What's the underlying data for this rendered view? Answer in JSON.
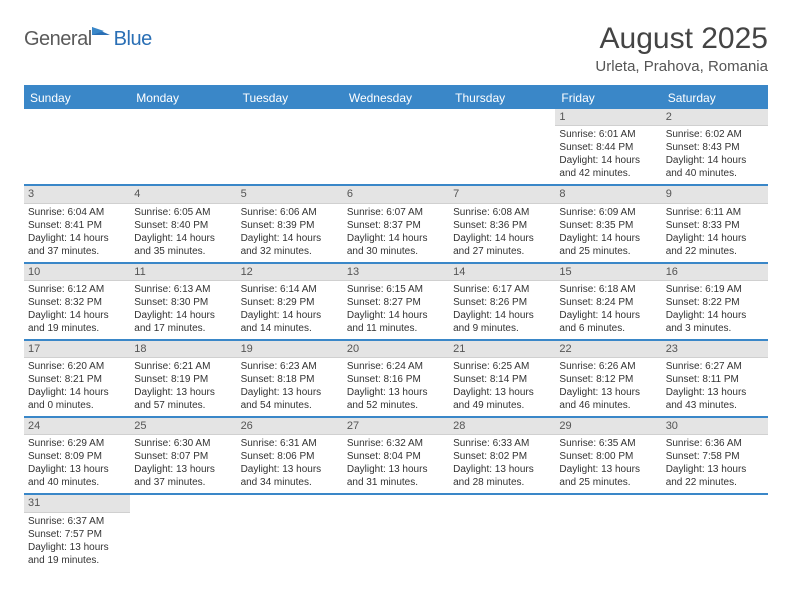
{
  "logo": {
    "part1": "General",
    "part2": "Blue"
  },
  "title": "August 2025",
  "location": "Urleta, Prahova, Romania",
  "colors": {
    "brand_blue": "#3a87c8",
    "brand_blue_dark": "#2a6fb5",
    "header_gray": "#e4e4e4",
    "text": "#333333",
    "white": "#ffffff"
  },
  "weekdays": [
    "Sunday",
    "Monday",
    "Tuesday",
    "Wednesday",
    "Thursday",
    "Friday",
    "Saturday"
  ],
  "weeks": [
    [
      null,
      null,
      null,
      null,
      null,
      {
        "n": "1",
        "sr": "6:01 AM",
        "ss": "8:44 PM",
        "dl": "14 hours and 42 minutes."
      },
      {
        "n": "2",
        "sr": "6:02 AM",
        "ss": "8:43 PM",
        "dl": "14 hours and 40 minutes."
      }
    ],
    [
      {
        "n": "3",
        "sr": "6:04 AM",
        "ss": "8:41 PM",
        "dl": "14 hours and 37 minutes."
      },
      {
        "n": "4",
        "sr": "6:05 AM",
        "ss": "8:40 PM",
        "dl": "14 hours and 35 minutes."
      },
      {
        "n": "5",
        "sr": "6:06 AM",
        "ss": "8:39 PM",
        "dl": "14 hours and 32 minutes."
      },
      {
        "n": "6",
        "sr": "6:07 AM",
        "ss": "8:37 PM",
        "dl": "14 hours and 30 minutes."
      },
      {
        "n": "7",
        "sr": "6:08 AM",
        "ss": "8:36 PM",
        "dl": "14 hours and 27 minutes."
      },
      {
        "n": "8",
        "sr": "6:09 AM",
        "ss": "8:35 PM",
        "dl": "14 hours and 25 minutes."
      },
      {
        "n": "9",
        "sr": "6:11 AM",
        "ss": "8:33 PM",
        "dl": "14 hours and 22 minutes."
      }
    ],
    [
      {
        "n": "10",
        "sr": "6:12 AM",
        "ss": "8:32 PM",
        "dl": "14 hours and 19 minutes."
      },
      {
        "n": "11",
        "sr": "6:13 AM",
        "ss": "8:30 PM",
        "dl": "14 hours and 17 minutes."
      },
      {
        "n": "12",
        "sr": "6:14 AM",
        "ss": "8:29 PM",
        "dl": "14 hours and 14 minutes."
      },
      {
        "n": "13",
        "sr": "6:15 AM",
        "ss": "8:27 PM",
        "dl": "14 hours and 11 minutes."
      },
      {
        "n": "14",
        "sr": "6:17 AM",
        "ss": "8:26 PM",
        "dl": "14 hours and 9 minutes."
      },
      {
        "n": "15",
        "sr": "6:18 AM",
        "ss": "8:24 PM",
        "dl": "14 hours and 6 minutes."
      },
      {
        "n": "16",
        "sr": "6:19 AM",
        "ss": "8:22 PM",
        "dl": "14 hours and 3 minutes."
      }
    ],
    [
      {
        "n": "17",
        "sr": "6:20 AM",
        "ss": "8:21 PM",
        "dl": "14 hours and 0 minutes."
      },
      {
        "n": "18",
        "sr": "6:21 AM",
        "ss": "8:19 PM",
        "dl": "13 hours and 57 minutes."
      },
      {
        "n": "19",
        "sr": "6:23 AM",
        "ss": "8:18 PM",
        "dl": "13 hours and 54 minutes."
      },
      {
        "n": "20",
        "sr": "6:24 AM",
        "ss": "8:16 PM",
        "dl": "13 hours and 52 minutes."
      },
      {
        "n": "21",
        "sr": "6:25 AM",
        "ss": "8:14 PM",
        "dl": "13 hours and 49 minutes."
      },
      {
        "n": "22",
        "sr": "6:26 AM",
        "ss": "8:12 PM",
        "dl": "13 hours and 46 minutes."
      },
      {
        "n": "23",
        "sr": "6:27 AM",
        "ss": "8:11 PM",
        "dl": "13 hours and 43 minutes."
      }
    ],
    [
      {
        "n": "24",
        "sr": "6:29 AM",
        "ss": "8:09 PM",
        "dl": "13 hours and 40 minutes."
      },
      {
        "n": "25",
        "sr": "6:30 AM",
        "ss": "8:07 PM",
        "dl": "13 hours and 37 minutes."
      },
      {
        "n": "26",
        "sr": "6:31 AM",
        "ss": "8:06 PM",
        "dl": "13 hours and 34 minutes."
      },
      {
        "n": "27",
        "sr": "6:32 AM",
        "ss": "8:04 PM",
        "dl": "13 hours and 31 minutes."
      },
      {
        "n": "28",
        "sr": "6:33 AM",
        "ss": "8:02 PM",
        "dl": "13 hours and 28 minutes."
      },
      {
        "n": "29",
        "sr": "6:35 AM",
        "ss": "8:00 PM",
        "dl": "13 hours and 25 minutes."
      },
      {
        "n": "30",
        "sr": "6:36 AM",
        "ss": "7:58 PM",
        "dl": "13 hours and 22 minutes."
      }
    ],
    [
      {
        "n": "31",
        "sr": "6:37 AM",
        "ss": "7:57 PM",
        "dl": "13 hours and 19 minutes."
      },
      null,
      null,
      null,
      null,
      null,
      null
    ]
  ],
  "labels": {
    "sunrise": "Sunrise: ",
    "sunset": "Sunset: ",
    "daylight": "Daylight: "
  }
}
